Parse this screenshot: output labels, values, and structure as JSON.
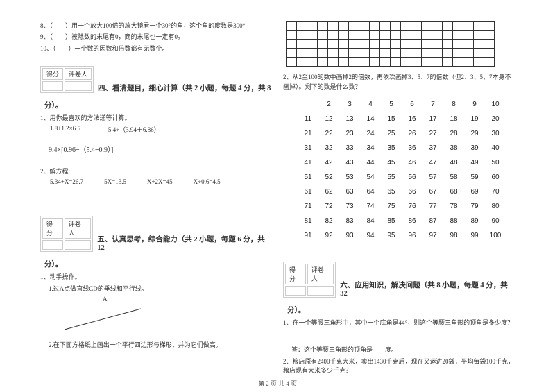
{
  "left": {
    "q8": "8、（　　）用一个放大100倍的放大镜看一个30°的角，这个角的度数是300°",
    "q9": "9、（　　）被除数的末尾有0，商的末尾也一定有0。",
    "q10": "10、（　　）一个数的因数和倍数都有无数个。",
    "score_a": "得分",
    "score_b": "评卷人",
    "sec4_title": "四、看清题目，细心计算（共 2 小题，每题 4 分，共 8",
    "sec4_tail": "分）。",
    "p1": "1、用你最喜欢的方法递等计算。",
    "p1a": "1.8+1.2×6.5",
    "p1b": "5.4÷（3.94＋6.86）",
    "p1c": "9.4×[0.96÷（5.4÷0.9）]",
    "p2": "2、解方程:",
    "p2a": "5.34+X=26.7",
    "p2b": "5X=13.5",
    "p2c": "X+2X=45",
    "p2d": "X÷0.6=4.5",
    "sec5_title": "五、认真思考，综合能力（共 2 小题，每题 6 分，共 12",
    "sec5_tail": "分）。",
    "p3": "1、动手操作。",
    "p3a": "1.过A点做直线CD的垂线和平行线。",
    "p3a_label": "A",
    "p3b": "2.在下面方格纸上画出一个平行四边形与梯形，并为它们做高。"
  },
  "right": {
    "q2": "2、从2至100的数中画掉2的倍数，再依次画掉3、5、7的倍数（但2、3、5、7本身不画掉）。剩下的数是什么数？",
    "rows": [
      [
        "",
        "2",
        "3",
        "4",
        "5",
        "6",
        "7",
        "8",
        "9",
        "10"
      ],
      [
        "11",
        "12",
        "13",
        "14",
        "15",
        "16",
        "17",
        "18",
        "19",
        "20"
      ],
      [
        "21",
        "22",
        "23",
        "24",
        "25",
        "26",
        "27",
        "28",
        "29",
        "30"
      ],
      [
        "31",
        "32",
        "33",
        "34",
        "35",
        "36",
        "37",
        "38",
        "39",
        "40"
      ],
      [
        "41",
        "42",
        "43",
        "44",
        "45",
        "46",
        "47",
        "48",
        "49",
        "50"
      ],
      [
        "51",
        "52",
        "53",
        "54",
        "55",
        "56",
        "57",
        "58",
        "59",
        "60"
      ],
      [
        "61",
        "62",
        "63",
        "64",
        "65",
        "66",
        "67",
        "68",
        "69",
        "70"
      ],
      [
        "71",
        "72",
        "73",
        "74",
        "75",
        "76",
        "77",
        "78",
        "79",
        "80"
      ],
      [
        "81",
        "82",
        "83",
        "84",
        "85",
        "86",
        "87",
        "88",
        "89",
        "90"
      ],
      [
        "91",
        "92",
        "93",
        "94",
        "95",
        "96",
        "97",
        "98",
        "99",
        "100"
      ]
    ],
    "score_a": "得分",
    "score_b": "评卷人",
    "sec6_title": "六、应用知识，解决问题（共 8 小题，每题 4 分，共 32",
    "sec6_tail": "分）。",
    "r1": "1、在一个等腰三角形中，其中一个底角是44°，则这个等腰三角形的顶角是多少度？",
    "r1ans": "答：这个等腰三角形的顶角是____度。",
    "r2": "2、粮店原有2400千克大米，卖出1430千克后，现在又运进20袋，平均每袋100千克，粮店现有大米多少千克？"
  },
  "footer": "第 2 页 共 4 页"
}
